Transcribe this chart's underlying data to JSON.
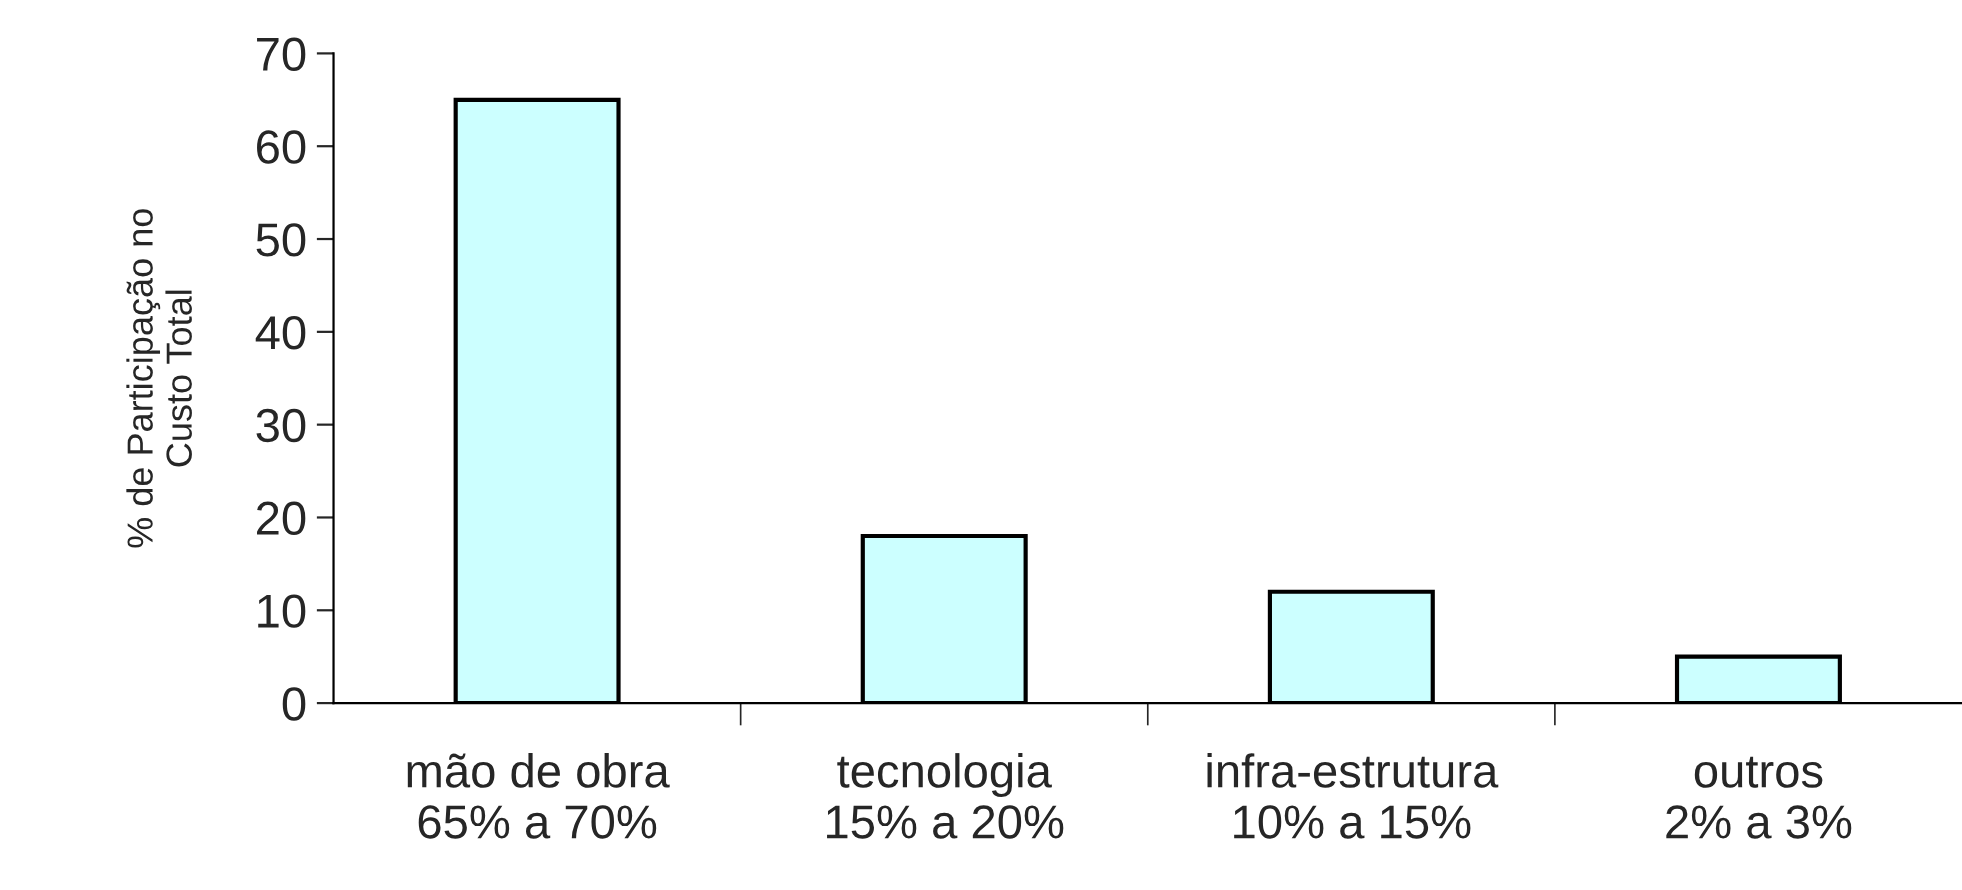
{
  "chart_data": {
    "type": "bar",
    "ylabel": "% de Participação no\nCusto Total",
    "categories": [
      "mão de obra\n65% a 70%",
      "tecnologia\n15% a 20%",
      "infra-estrutura\n10% a 15%",
      "outros\n2% a 3%"
    ],
    "values": [
      65,
      18,
      12,
      5
    ],
    "color": "#ccffff",
    "ylim": [
      0,
      70
    ],
    "yticks": [
      0,
      10,
      20,
      30,
      40,
      50,
      60,
      70
    ],
    "grid": false,
    "legend": false
  }
}
